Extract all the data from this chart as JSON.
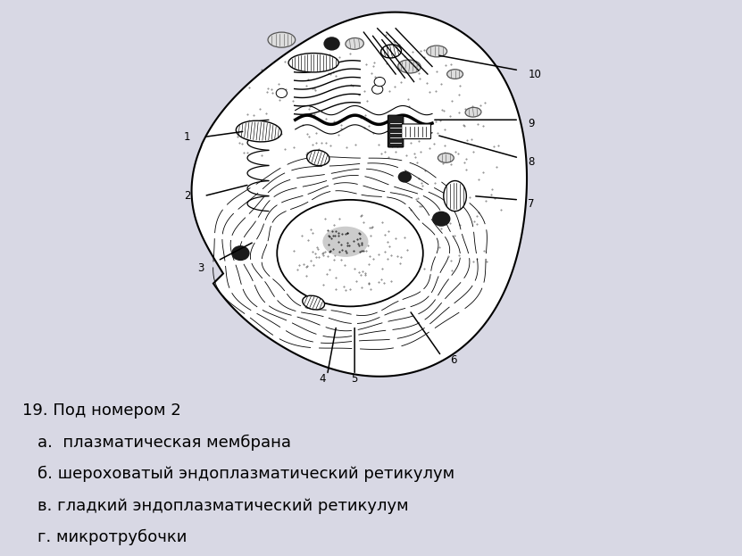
{
  "bg_color": "#d8d8e4",
  "cell_bg": "#ffffff",
  "title_question": "19. Под номером 2",
  "answers": [
    "а.  плазматическая мембрана",
    "б. шероховатый эндоплазматический ретикулум",
    "в. гладкий эндоплазматический ретикулум",
    "г. микротрубочки"
  ],
  "fontsize_question": 13,
  "fontsize_answers": 13
}
